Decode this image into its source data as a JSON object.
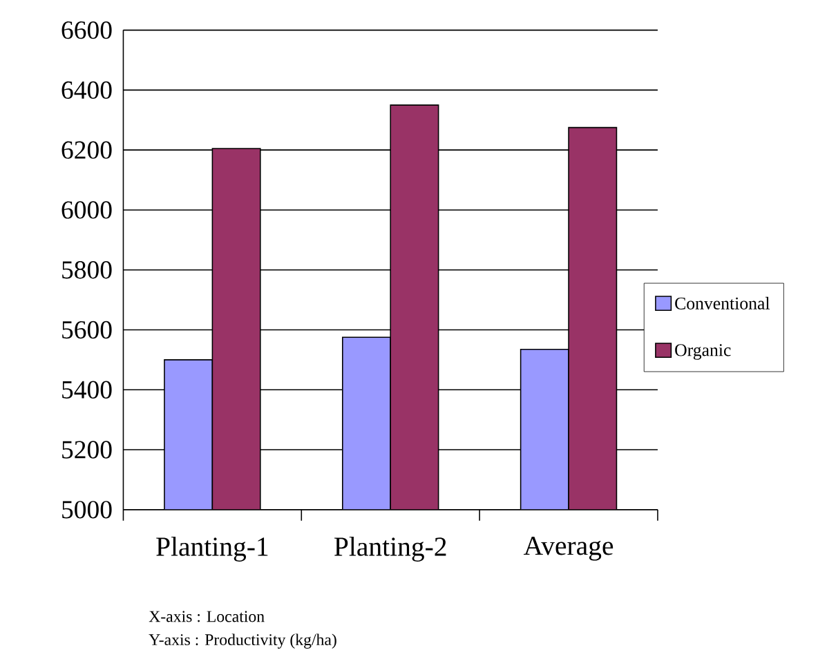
{
  "chart_data": {
    "type": "bar",
    "categories": [
      "Planting-1",
      "Planting-2",
      "Average"
    ],
    "series": [
      {
        "name": "Conventional",
        "color": "#9999ff",
        "values": [
          5500,
          5575,
          5535
        ]
      },
      {
        "name": "Organic",
        "color": "#993366",
        "values": [
          6205,
          6350,
          6275
        ]
      }
    ],
    "ylim": [
      5000,
      6600
    ],
    "yticks": [
      5000,
      5200,
      5400,
      5600,
      5800,
      6000,
      6200,
      6400,
      6600
    ],
    "grid": "y",
    "legend": "right",
    "annotations": [
      "X-axis : Location",
      "Y-axis : Productivity (kg/ha)"
    ]
  }
}
